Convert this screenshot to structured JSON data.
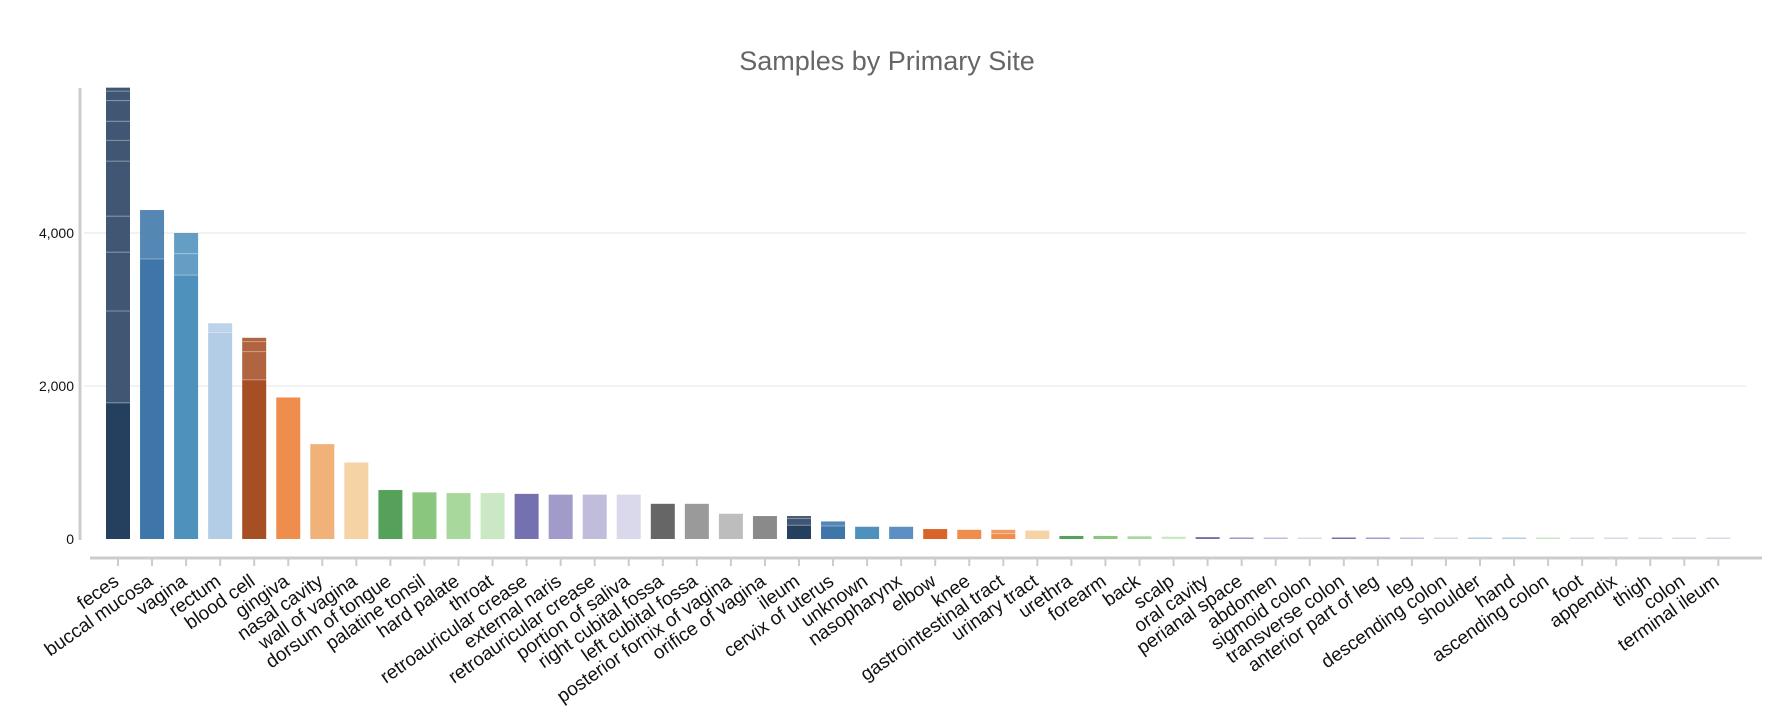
{
  "chart_data": {
    "type": "bar",
    "stacked": true,
    "title": "Samples by Primary Site",
    "xlabel": "",
    "ylabel": "",
    "ylim": [
      0,
      5900
    ],
    "yticks": [
      0,
      2000,
      4000
    ],
    "ytick_labels": [
      "0",
      "2,000",
      "4,000"
    ],
    "grid": true,
    "legend": "none",
    "categories": [
      "feces",
      "buccal mucosa",
      "vagina",
      "rectum",
      "blood cell",
      "gingiva",
      "nasal cavity",
      "wall of vagina",
      "dorsum of tongue",
      "palatine tonsil",
      "hard palate",
      "throat",
      "retroauricular crease",
      "external naris",
      "retroauricular crease",
      "portion of saliva",
      "right cubital fossa",
      "left cubital fossa",
      "posterior fornix of vagina",
      "orifice of vagina",
      "ileum",
      "cervix of uterus",
      "unknown",
      "nasopharynx",
      "elbow",
      "knee",
      "gastrointestinal tract",
      "urinary tract",
      "urethra",
      "forearm",
      "back",
      "scalp",
      "oral cavity",
      "perianal space",
      "abdomen",
      "sigmoid colon",
      "transverse colon",
      "anterior part of leg",
      "leg",
      "descending colon",
      "shoulder",
      "hand",
      "ascending colon",
      "foot",
      "appendix",
      "thigh",
      "colon",
      "terminal ileum"
    ],
    "bars": [
      {
        "color": "#24405e",
        "segments": [
          1780,
          1200,
          770,
          470,
          720,
          270,
          250,
          270,
          125,
          45
        ]
      },
      {
        "color": "#3e76aa",
        "segments": [
          3660,
          640
        ]
      },
      {
        "color": "#4f91bd",
        "segments": [
          3450,
          280,
          270
        ]
      },
      {
        "color": "#b4cde6",
        "segments": [
          2700,
          120
        ]
      },
      {
        "color": "#a64f25",
        "segments": [
          2080,
          370,
          130,
          50
        ]
      },
      {
        "color": "#ef8d4c",
        "segments": [
          1850
        ]
      },
      {
        "color": "#f1b27a",
        "segments": [
          1240
        ]
      },
      {
        "color": "#f6d3a5",
        "segments": [
          1000
        ]
      },
      {
        "color": "#56a15a",
        "segments": [
          640
        ]
      },
      {
        "color": "#8ac67e",
        "segments": [
          610
        ]
      },
      {
        "color": "#a9d89c",
        "segments": [
          600
        ]
      },
      {
        "color": "#cbe8c4",
        "segments": [
          600
        ]
      },
      {
        "color": "#7570b0",
        "segments": [
          590
        ]
      },
      {
        "color": "#a19bc9",
        "segments": [
          580
        ]
      },
      {
        "color": "#bfbcdc",
        "segments": [
          580
        ]
      },
      {
        "color": "#dad9eb",
        "segments": [
          580
        ]
      },
      {
        "color": "#666666",
        "segments": [
          460
        ]
      },
      {
        "color": "#9a9a9a",
        "segments": [
          460
        ]
      },
      {
        "color": "#bdbdbd",
        "segments": [
          330
        ]
      },
      {
        "color": "#8a8a8a",
        "segments": [
          300
        ]
      },
      {
        "color": "#24405e",
        "segments": [
          180,
          90,
          30
        ]
      },
      {
        "color": "#3e76aa",
        "segments": [
          170,
          60
        ]
      },
      {
        "color": "#4f91bd",
        "segments": [
          160
        ]
      },
      {
        "color": "#5d8fc4",
        "segments": [
          160
        ]
      },
      {
        "color": "#d8642a",
        "segments": [
          130
        ]
      },
      {
        "color": "#ef8d4c",
        "segments": [
          120
        ]
      },
      {
        "color": "#ef8d4c",
        "segments": [
          70,
          50
        ]
      },
      {
        "color": "#f6d3a5",
        "segments": [
          110
        ]
      },
      {
        "color": "#56a15a",
        "segments": [
          40
        ]
      },
      {
        "color": "#8ac67e",
        "segments": [
          40
        ]
      },
      {
        "color": "#a9d89c",
        "segments": [
          35
        ]
      },
      {
        "color": "#cbe8c4",
        "segments": [
          30
        ]
      },
      {
        "color": "#7570b0",
        "segments": [
          25
        ]
      },
      {
        "color": "#a19bc9",
        "segments": [
          20
        ]
      },
      {
        "color": "#bfbcdc",
        "segments": [
          18
        ]
      },
      {
        "color": "#dad9eb",
        "segments": [
          15
        ]
      },
      {
        "color": "#7570b0",
        "segments": [
          15
        ]
      },
      {
        "color": "#a19bc9",
        "segments": [
          12
        ]
      },
      {
        "color": "#bfbcdc",
        "segments": [
          10
        ]
      },
      {
        "color": "#dad9eb",
        "segments": [
          10
        ]
      },
      {
        "color": "#b4cde6",
        "segments": [
          10
        ]
      },
      {
        "color": "#b4cde6",
        "segments": [
          8
        ]
      },
      {
        "color": "#cbe8c4",
        "segments": [
          8
        ]
      },
      {
        "color": "#dad9eb",
        "segments": [
          6
        ]
      },
      {
        "color": "#dad9eb",
        "segments": [
          5
        ]
      },
      {
        "color": "#dad9eb",
        "segments": [
          4
        ]
      },
      {
        "color": "#dad9eb",
        "segments": [
          3
        ]
      },
      {
        "color": "#dad9eb",
        "segments": [
          2
        ]
      }
    ]
  }
}
